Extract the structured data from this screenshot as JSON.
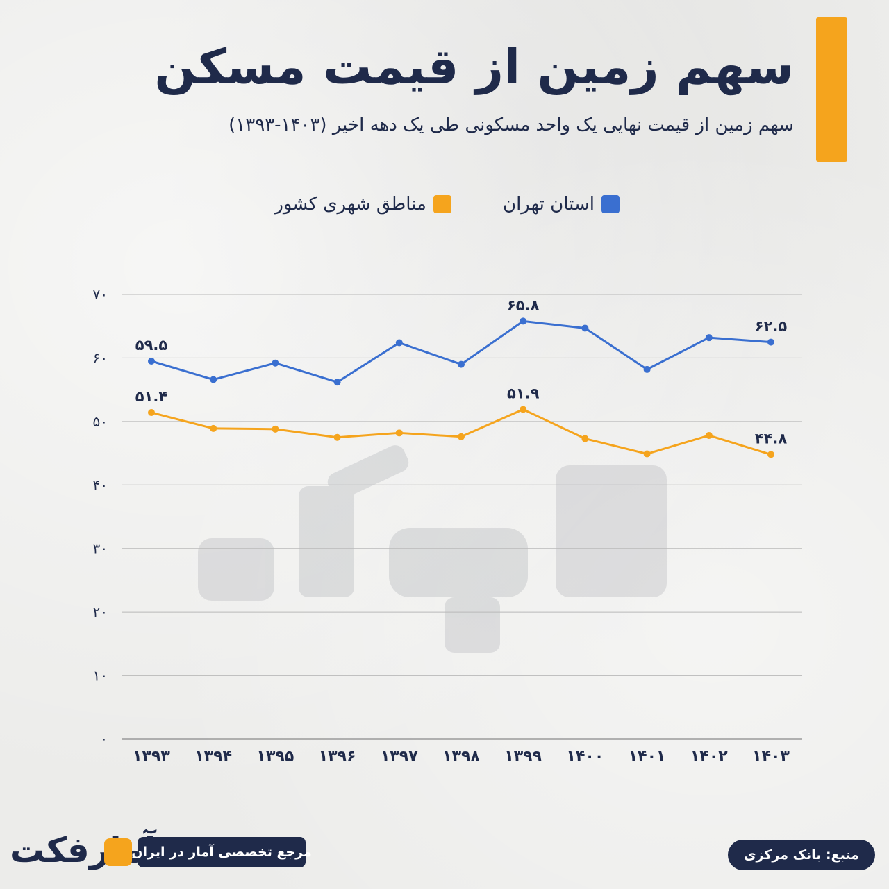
{
  "header": {
    "title": "سهم زمین از قیمت مسکن",
    "subtitle": "سهم زمین از قیمت نهایی یک واحد مسکونی طی یک دهه اخیر (۱۴۰۳-۱۳۹۳)",
    "accent_color": "#f5a41d"
  },
  "legend": [
    {
      "label": "استان تهران",
      "color": "#3a6fd0"
    },
    {
      "label": "مناطق شهری کشور",
      "color": "#f5a41d"
    }
  ],
  "chart_data": {
    "type": "line",
    "categories": [
      "۱۳۹۳",
      "۱۳۹۴",
      "۱۳۹۵",
      "۱۳۹۶",
      "۱۳۹۷",
      "۱۳۹۸",
      "۱۳۹۹",
      "۱۴۰۰",
      "۱۴۰۱",
      "۱۴۰۲",
      "۱۴۰۳"
    ],
    "y_ticks": [
      "۰",
      "۱۰",
      "۲۰",
      "۳۰",
      "۴۰",
      "۵۰",
      "۶۰",
      "۷۰"
    ],
    "ylim": [
      0,
      70
    ],
    "grid": true,
    "legend_position": "top",
    "series": [
      {
        "name": "استان تهران",
        "color": "#3a6fd0",
        "values": [
          59.5,
          56.6,
          59.2,
          56.2,
          62.4,
          59.0,
          65.8,
          64.7,
          58.2,
          63.2,
          62.5
        ],
        "labels": {
          "0": "۵۹.۵",
          "6": "۶۵.۸",
          "10": "۶۲.۵"
        }
      },
      {
        "name": "مناطق شهری کشور",
        "color": "#f5a41d",
        "values": [
          51.4,
          48.9,
          48.8,
          47.5,
          48.2,
          47.6,
          51.9,
          47.3,
          44.9,
          47.8,
          44.8
        ],
        "labels": {
          "0": "۵۱.۴",
          "6": "۵۱.۹",
          "10": "۴۴.۸"
        }
      }
    ]
  },
  "footer": {
    "source": "منبع: بانک مرکزی",
    "reference": "مرجع تخصصی آمار در ایران",
    "logo": "آمارفکت"
  }
}
